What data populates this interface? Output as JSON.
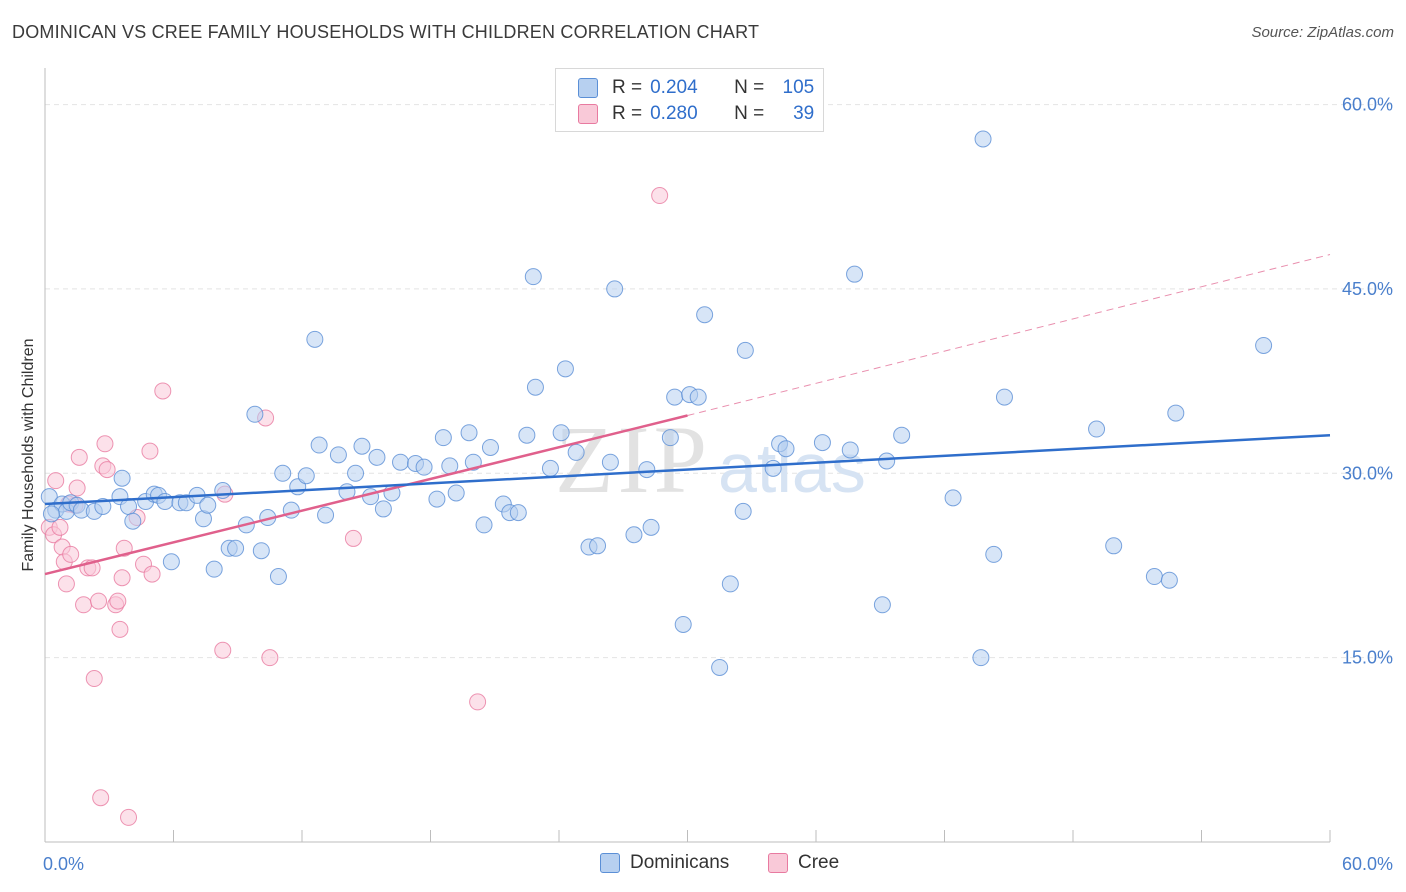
{
  "header": {
    "title": "DOMINICAN VS CREE FAMILY HOUSEHOLDS WITH CHILDREN CORRELATION CHART",
    "source": "Source: ZipAtlas.com"
  },
  "legend_top": {
    "r_label": "R =",
    "n_label": "N =",
    "rows": [
      {
        "r": "0.204",
        "n": "105"
      },
      {
        "r": "0.280",
        "n": "39"
      }
    ]
  },
  "legend_bottom": {
    "items": [
      "Dominicans",
      "Cree"
    ]
  },
  "watermark": {
    "zip": "ZIP",
    "atlas": "atlas"
  },
  "colors": {
    "blue_fill": "#b7d0f0",
    "blue_stroke": "#5b8fd6",
    "blue_line": "#2f6ecb",
    "pink_fill": "#f9c9d8",
    "pink_stroke": "#e87aa0",
    "pink_line": "#e0608c",
    "tick_label": "#4a7fcc",
    "grid": "#e4e4e4"
  },
  "chart_data": {
    "type": "scatter",
    "title": "DOMINICAN VS CREE FAMILY HOUSEHOLDS WITH CHILDREN CORRELATION CHART",
    "xlabel": "",
    "ylabel": "Family Households with Children",
    "xlim": [
      0,
      60
    ],
    "ylim": [
      0,
      62
    ],
    "x_tick_labels": [
      "0.0%",
      "60.0%"
    ],
    "y_ticks": [
      15,
      30,
      45,
      60
    ],
    "y_tick_labels": [
      "15.0%",
      "30.0%",
      "45.0%",
      "60.0%"
    ],
    "grid": true,
    "legend_position": "top-center",
    "series": [
      {
        "name": "Dominicans",
        "r": 0.204,
        "n": 105,
        "trend": {
          "x0": 0,
          "y0": 27.5,
          "x1": 60,
          "y1": 33.1
        },
        "points": [
          [
            0.2,
            28.1
          ],
          [
            0.5,
            27.0
          ],
          [
            0.8,
            27.5
          ],
          [
            1.0,
            26.9
          ],
          [
            1.2,
            27.6
          ],
          [
            1.5,
            27.4
          ],
          [
            1.7,
            27.0
          ],
          [
            2.3,
            26.9
          ],
          [
            2.7,
            27.3
          ],
          [
            3.5,
            28.1
          ],
          [
            3.6,
            29.6
          ],
          [
            3.9,
            27.3
          ],
          [
            4.1,
            26.1
          ],
          [
            4.7,
            27.7
          ],
          [
            5.1,
            28.3
          ],
          [
            5.3,
            28.2
          ],
          [
            5.6,
            27.7
          ],
          [
            5.9,
            22.8
          ],
          [
            6.3,
            27.6
          ],
          [
            6.6,
            27.6
          ],
          [
            7.1,
            28.2
          ],
          [
            7.4,
            26.3
          ],
          [
            7.6,
            27.4
          ],
          [
            7.9,
            22.2
          ],
          [
            8.3,
            28.6
          ],
          [
            8.6,
            23.9
          ],
          [
            8.9,
            23.9
          ],
          [
            9.4,
            25.8
          ],
          [
            9.8,
            34.8
          ],
          [
            10.1,
            23.7
          ],
          [
            10.4,
            26.4
          ],
          [
            10.9,
            21.6
          ],
          [
            11.1,
            30.0
          ],
          [
            11.5,
            27.0
          ],
          [
            11.8,
            28.9
          ],
          [
            12.2,
            29.8
          ],
          [
            12.6,
            40.9
          ],
          [
            12.8,
            32.3
          ],
          [
            13.1,
            26.6
          ],
          [
            13.7,
            31.5
          ],
          [
            14.1,
            28.5
          ],
          [
            14.5,
            30.0
          ],
          [
            14.8,
            32.2
          ],
          [
            15.2,
            28.1
          ],
          [
            15.5,
            31.3
          ],
          [
            15.8,
            27.1
          ],
          [
            16.2,
            28.4
          ],
          [
            16.6,
            30.9
          ],
          [
            17.3,
            30.8
          ],
          [
            17.7,
            30.5
          ],
          [
            18.3,
            27.9
          ],
          [
            18.6,
            32.9
          ],
          [
            18.9,
            30.6
          ],
          [
            19.2,
            28.4
          ],
          [
            19.8,
            33.3
          ],
          [
            20.0,
            30.9
          ],
          [
            20.5,
            25.8
          ],
          [
            20.8,
            32.1
          ],
          [
            21.4,
            27.5
          ],
          [
            21.7,
            26.8
          ],
          [
            22.1,
            26.8
          ],
          [
            22.5,
            33.1
          ],
          [
            22.8,
            46.0
          ],
          [
            22.9,
            37.0
          ],
          [
            23.6,
            30.4
          ],
          [
            24.1,
            33.3
          ],
          [
            24.3,
            38.5
          ],
          [
            24.8,
            31.7
          ],
          [
            25.4,
            24.0
          ],
          [
            25.8,
            24.1
          ],
          [
            26.4,
            30.9
          ],
          [
            26.6,
            45.0
          ],
          [
            27.5,
            25.0
          ],
          [
            28.1,
            30.3
          ],
          [
            28.3,
            25.6
          ],
          [
            29.2,
            32.9
          ],
          [
            29.4,
            36.2
          ],
          [
            29.8,
            17.7
          ],
          [
            30.1,
            36.4
          ],
          [
            30.5,
            36.2
          ],
          [
            30.8,
            42.9
          ],
          [
            31.5,
            14.2
          ],
          [
            32.0,
            21.0
          ],
          [
            32.6,
            26.9
          ],
          [
            32.7,
            40.0
          ],
          [
            34.0,
            30.4
          ],
          [
            34.3,
            32.4
          ],
          [
            34.6,
            32.0
          ],
          [
            36.3,
            32.5
          ],
          [
            37.6,
            31.9
          ],
          [
            37.8,
            46.2
          ],
          [
            39.1,
            19.3
          ],
          [
            39.3,
            31.0
          ],
          [
            40.0,
            33.1
          ],
          [
            42.4,
            28.0
          ],
          [
            43.8,
            57.2
          ],
          [
            43.7,
            15.0
          ],
          [
            44.3,
            23.4
          ],
          [
            44.8,
            36.2
          ],
          [
            49.1,
            33.6
          ],
          [
            49.9,
            24.1
          ],
          [
            51.8,
            21.6
          ],
          [
            52.5,
            21.3
          ],
          [
            52.8,
            34.9
          ],
          [
            56.9,
            40.4
          ],
          [
            0.3,
            26.7
          ]
        ]
      },
      {
        "name": "Cree",
        "r": 0.28,
        "n": 39,
        "trend": {
          "x0": 0,
          "y0": 21.8,
          "x1": 30,
          "y1": 34.7
        },
        "trend_dashed": {
          "x0": 30,
          "y0": 34.7,
          "x1": 60,
          "y1": 47.8
        },
        "points": [
          [
            0.2,
            25.6
          ],
          [
            0.4,
            25.0
          ],
          [
            0.5,
            29.4
          ],
          [
            0.7,
            25.6
          ],
          [
            0.8,
            24.0
          ],
          [
            0.9,
            22.8
          ],
          [
            1.0,
            21.0
          ],
          [
            1.2,
            23.4
          ],
          [
            1.4,
            27.4
          ],
          [
            1.5,
            28.8
          ],
          [
            1.6,
            31.3
          ],
          [
            1.8,
            19.3
          ],
          [
            2.0,
            22.3
          ],
          [
            2.2,
            22.3
          ],
          [
            2.3,
            13.3
          ],
          [
            2.5,
            19.6
          ],
          [
            2.6,
            3.6
          ],
          [
            2.7,
            30.6
          ],
          [
            2.8,
            32.4
          ],
          [
            2.9,
            30.3
          ],
          [
            3.3,
            19.3
          ],
          [
            3.5,
            17.3
          ],
          [
            3.6,
            21.5
          ],
          [
            3.7,
            23.9
          ],
          [
            3.9,
            2.0
          ],
          [
            4.3,
            26.4
          ],
          [
            4.6,
            22.6
          ],
          [
            4.9,
            31.8
          ],
          [
            5.0,
            21.8
          ],
          [
            5.5,
            36.7
          ],
          [
            8.3,
            15.6
          ],
          [
            8.4,
            28.3
          ],
          [
            10.3,
            34.5
          ],
          [
            10.5,
            15.0
          ],
          [
            14.4,
            24.7
          ],
          [
            20.2,
            11.4
          ],
          [
            28.7,
            52.6
          ],
          [
            1.1,
            27.5
          ],
          [
            3.4,
            19.6
          ]
        ]
      }
    ]
  }
}
